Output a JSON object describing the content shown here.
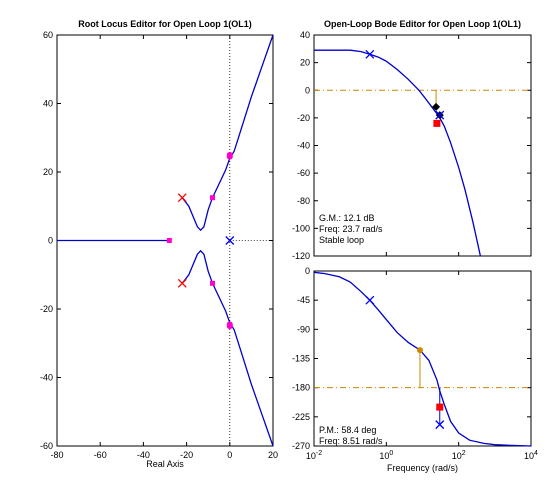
{
  "chart_data": [
    {
      "type": "line",
      "title": "Root Locus Editor for Open Loop 1(OL1)",
      "xlabel": "Real Axis",
      "ylabel": "",
      "xlim": [
        -80,
        20
      ],
      "ylim": [
        -60,
        60
      ],
      "x_ticks": [
        -80,
        -60,
        -40,
        -20,
        0,
        20
      ],
      "y_ticks": [
        -60,
        -40,
        -20,
        0,
        20,
        40,
        60
      ],
      "branches": [
        {
          "points": [
            [
              -28,
              0
            ],
            [
              -80,
              0
            ]
          ]
        },
        {
          "points": [
            [
              -22,
              12.5
            ],
            [
              -19,
              10
            ],
            [
              -17,
              7
            ],
            [
              -15,
              4
            ],
            [
              -13.5,
              3
            ],
            [
              -12,
              4
            ],
            [
              -10,
              9
            ],
            [
              -8,
              12.5
            ],
            [
              -5,
              16.5
            ],
            [
              -2,
              20.5
            ],
            [
              0,
              24
            ],
            [
              2,
              26
            ],
            [
              5,
              32
            ],
            [
              10,
              42
            ],
            [
              15,
              51
            ],
            [
              20,
              60
            ]
          ]
        },
        {
          "points": [
            [
              -22,
              -12.5
            ],
            [
              -19,
              -10
            ],
            [
              -17,
              -7
            ],
            [
              -15,
              -4
            ],
            [
              -13.5,
              -3
            ],
            [
              -12,
              -4
            ],
            [
              -10,
              -9
            ],
            [
              -8,
              -12.5
            ],
            [
              -5,
              -16.5
            ],
            [
              -2,
              -20.5
            ],
            [
              0,
              -24
            ],
            [
              2,
              -26
            ],
            [
              5,
              -32
            ],
            [
              10,
              -42
            ],
            [
              15,
              -51
            ],
            [
              20,
              -60
            ]
          ]
        }
      ],
      "open_loop_poles": [
        [
          -22,
          12.5
        ],
        [
          -22,
          -12.5
        ],
        [
          0,
          0
        ]
      ],
      "closed_loop_poles": [
        [
          -28,
          0
        ],
        [
          -8,
          12.5
        ],
        [
          -8,
          -12.5
        ],
        [
          0,
          24.5
        ],
        [
          0,
          -24.5
        ],
        [
          0,
          25
        ],
        [
          0,
          -25
        ]
      ],
      "colors": {
        "locus": "#0000cc",
        "pole": "#ff0000",
        "closed_loop": "#ff00cc",
        "origin_pole": "#0000ff",
        "axis": "#000000"
      }
    },
    {
      "type": "line",
      "title": "Open-Loop Bode Editor for Open Loop 1(OL1)",
      "xlabel": "",
      "ylabel": "",
      "x_log": true,
      "xlim": [
        0.01,
        10000
      ],
      "ylim": [
        -120,
        40
      ],
      "y_ticks": [
        -120,
        -100,
        -80,
        -60,
        -40,
        -20,
        0,
        20,
        40
      ],
      "series": [
        {
          "x": [
            0.01,
            0.02,
            0.05,
            0.1,
            0.2,
            0.35,
            0.6,
            1,
            2,
            4,
            8,
            12,
            18,
            25,
            30,
            40,
            60,
            100,
            150,
            250,
            400
          ],
          "values": [
            29,
            29,
            29,
            29,
            28,
            26,
            24,
            21,
            15,
            8,
            0,
            -6,
            -12,
            -17,
            -20,
            -26,
            -38,
            -56,
            -72,
            -96,
            -120
          ]
        }
      ],
      "reference_line": 0,
      "pole_marker": [
        0.35,
        26
      ],
      "gain_margin_markers": [
        [
          23.7,
          -12
        ],
        [
          30,
          -18
        ]
      ],
      "square_marker": [
        25,
        -24
      ],
      "texts": [
        "G.M.: 12.1 dB",
        "Freq: 23.7 rad/s",
        "Stable loop"
      ],
      "colors": {
        "curve": "#0000cc",
        "reference": "#cc8800",
        "marker": "#0000ff",
        "square": "#ff0000",
        "diamond": "#000000"
      }
    },
    {
      "type": "line",
      "title": "",
      "xlabel": "Frequency (rad/s)",
      "ylabel": "",
      "x_log": true,
      "xlim": [
        0.01,
        10000
      ],
      "ylim": [
        -270,
        0
      ],
      "y_ticks": [
        -270,
        -225,
        -180,
        -135,
        -90,
        -45,
        0
      ],
      "x_tick_labels": [
        "10^-2",
        "10^0",
        "10^2",
        "10^4"
      ],
      "series": [
        {
          "x": [
            0.01,
            0.02,
            0.05,
            0.1,
            0.2,
            0.35,
            0.6,
            1,
            2,
            4,
            8.51,
            15,
            25,
            30,
            40,
            60,
            100,
            200,
            500,
            1000,
            3000,
            10000
          ],
          "values": [
            -2,
            -4,
            -9,
            -17,
            -32,
            -45,
            -60,
            -75,
            -95,
            -110,
            -122,
            -138,
            -168,
            -185,
            -206,
            -232,
            -250,
            -261,
            -266,
            -268,
            -269,
            -270
          ]
        }
      ],
      "reference_line": -180,
      "pole_marker": [
        0.35,
        -45
      ],
      "phase_margin_marker": [
        8.51,
        -122
      ],
      "stem_markers": [
        [
          30,
          -180
        ],
        [
          30,
          -210
        ],
        [
          30,
          -237
        ]
      ],
      "texts": [
        "P.M.: 58.4 deg",
        "Freq: 8.51 rad/s"
      ],
      "colors": {
        "curve": "#0000cc",
        "reference": "#cc8800",
        "marker": "#0000ff",
        "square": "#ff0000",
        "dot": "#cc8800"
      }
    }
  ]
}
